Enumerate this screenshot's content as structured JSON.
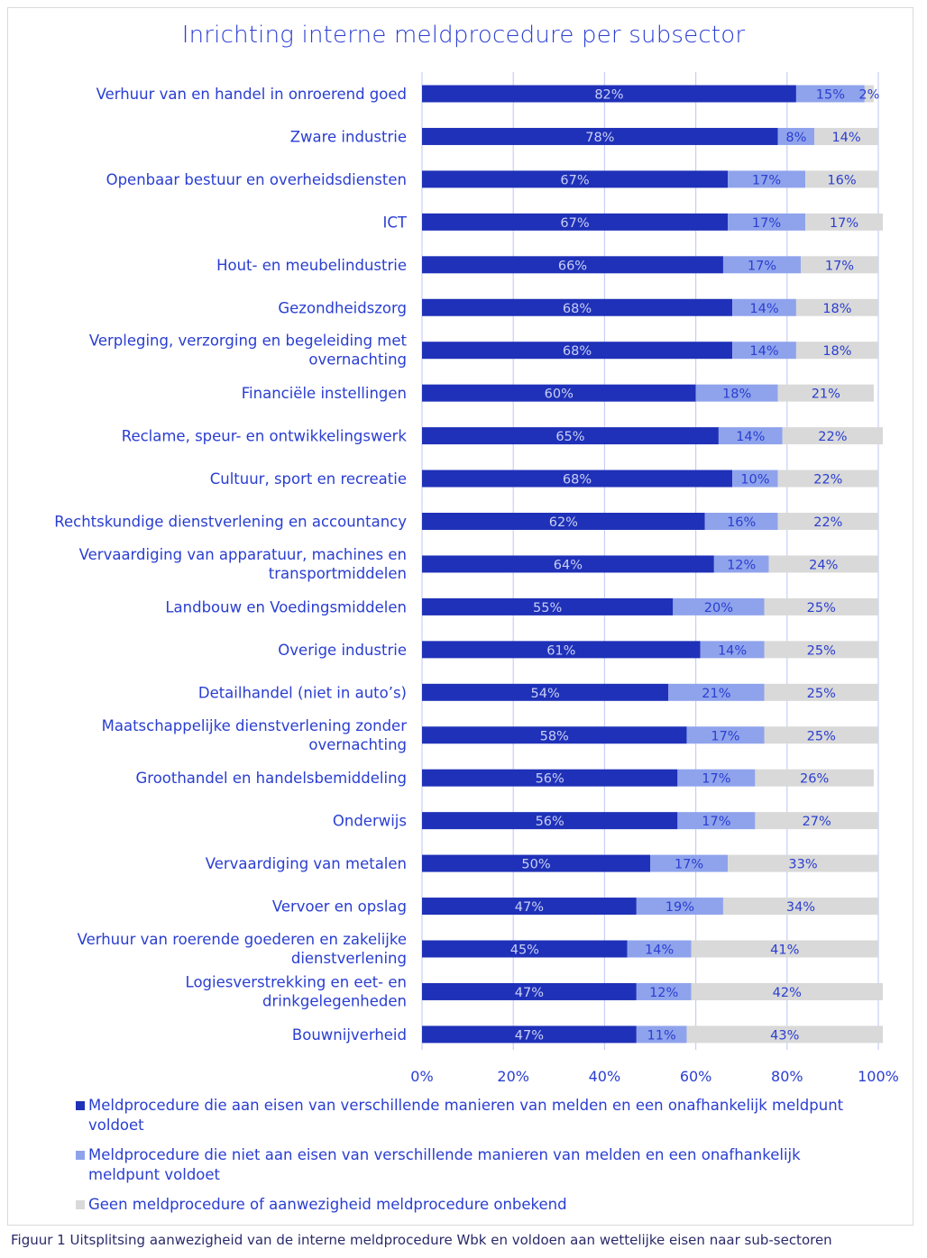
{
  "chart_data": {
    "type": "bar",
    "orientation": "horizontal",
    "stacked": true,
    "title": "Inrichting interne meldprocedure per subsector",
    "categories": [
      "Verhuur van en handel in onroerend goed",
      "Zware industrie",
      "Openbaar bestuur en overheidsdiensten",
      "ICT",
      "Hout- en meubelindustrie",
      "Gezondheidszorg",
      "Verpleging, verzorging en begeleiding met overnachting",
      "Financiële instellingen",
      "Reclame, speur- en ontwikkelingswerk",
      "Cultuur, sport en recreatie",
      "Rechtskundige dienstverlening en accountancy",
      "Vervaardiging van apparatuur, machines en transportmiddelen",
      "Landbouw en Voedingsmiddelen",
      "Overige industrie",
      "Detailhandel (niet in auto’s)",
      "Maatschappelijke dienstverlening zonder overnachting",
      "Groothandel en handelsbemiddeling",
      "Onderwijs",
      "Vervaardiging van metalen",
      "Vervoer en opslag",
      "Verhuur van roerende goederen en zakelijke dienstverlening",
      "Logiesverstrekking en eet- en drinkgelegenheden",
      "Bouwnijverheid"
    ],
    "series": [
      {
        "name": "Meldprocedure die aan eisen van verschillende manieren van melden en een onafhankelijk meldpunt voldoet",
        "color": "#1f31b8",
        "values": [
          82,
          78,
          67,
          67,
          66,
          68,
          68,
          60,
          65,
          68,
          62,
          64,
          55,
          61,
          54,
          58,
          56,
          56,
          50,
          47,
          45,
          47,
          47
        ]
      },
      {
        "name": "Meldprocedure die niet aan eisen van verschillende manieren van melden en een onafhankelijk meldpunt voldoet",
        "color": "#8fa3ec",
        "values": [
          15,
          8,
          17,
          17,
          17,
          14,
          14,
          18,
          14,
          10,
          16,
          12,
          20,
          14,
          21,
          17,
          17,
          17,
          17,
          19,
          14,
          12,
          11
        ]
      },
      {
        "name": "Geen meldprocedure of aanwezigheid meldprocedure onbekend",
        "color": "#d9d9d9",
        "values": [
          2,
          14,
          16,
          17,
          17,
          18,
          18,
          21,
          22,
          22,
          22,
          24,
          25,
          25,
          25,
          25,
          26,
          27,
          33,
          34,
          41,
          42,
          43
        ]
      }
    ],
    "xlim": [
      0,
      100
    ],
    "xticks": [
      "0%",
      "20%",
      "40%",
      "60%",
      "80%",
      "100%"
    ],
    "xlabel": "",
    "ylabel": "",
    "grid": true,
    "legend_position": "bottom"
  },
  "caption": "Figuur 1 Uitsplitsing aanwezigheid van de interne meldprocedure Wbk en voldoen aan wettelijke eisen naar sub-sectoren",
  "colors": {
    "text": "#2a3ed1",
    "grid": "#c8cef5"
  }
}
